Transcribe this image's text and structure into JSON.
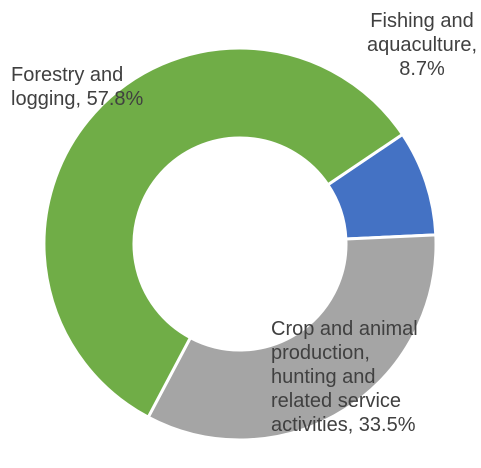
{
  "chart_data": {
    "type": "pie",
    "variant": "donut",
    "title": "",
    "unit": "%",
    "slices": [
      {
        "label_lines": [
          "Fishing and",
          "aquaculture,",
          "8.7%"
        ],
        "category": "Fishing and aquaculture",
        "value": 8.7,
        "color": "#4472C4"
      },
      {
        "label_lines": [
          "Crop and animal",
          "production,",
          "hunting and",
          "related service",
          "activities, 33.5%"
        ],
        "category": "Crop and animal production, hunting and related service activities",
        "value": 33.5,
        "color": "#A5A5A5"
      },
      {
        "label_lines": [
          "Forestry and",
          "logging, 57.8%"
        ],
        "category": "Forestry and logging",
        "value": 57.8,
        "color": "#70AD47"
      }
    ],
    "legend": "none",
    "data_labels": "category and percentage"
  }
}
